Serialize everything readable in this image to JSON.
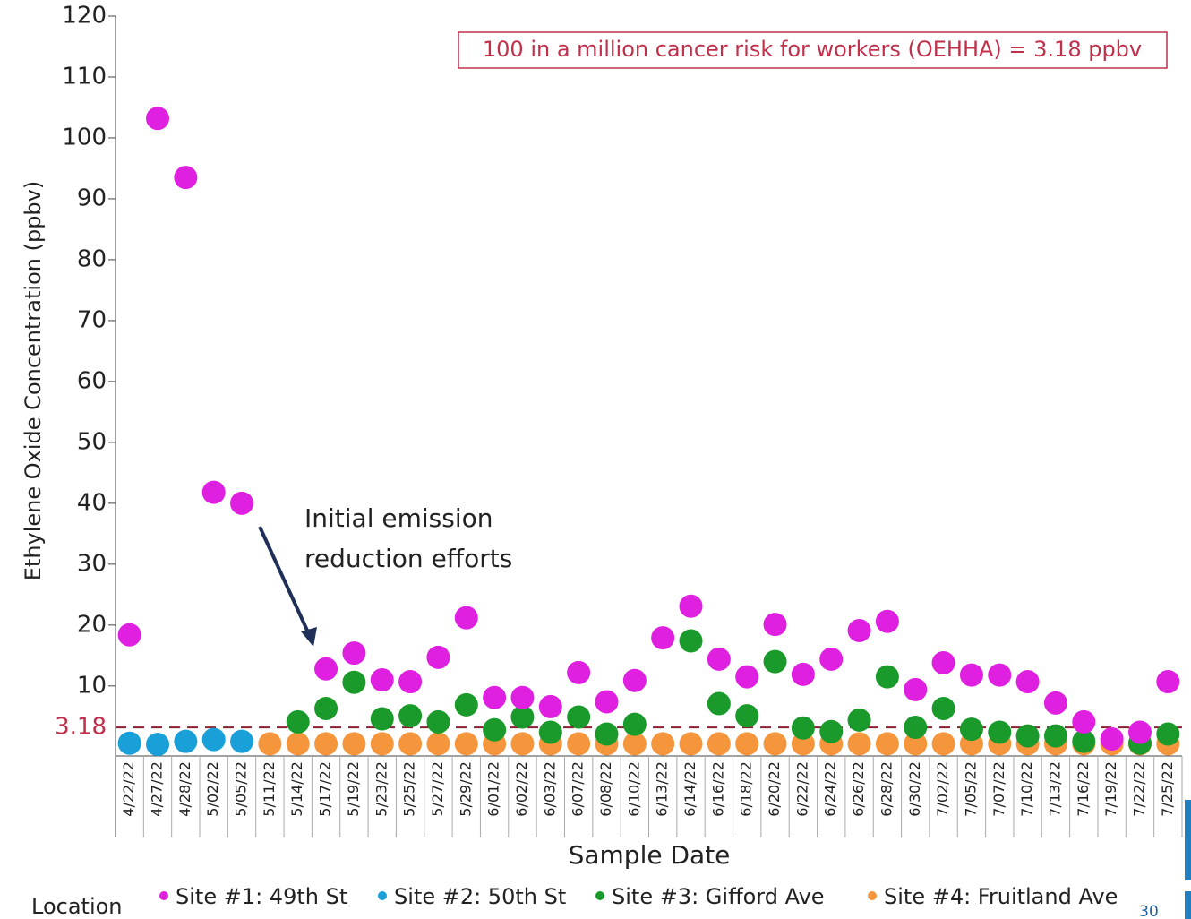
{
  "chart_data": {
    "type": "scatter",
    "y_label": "Ethylene Oxide Concentration (ppbv)",
    "x_label": "Sample Date",
    "annotation_box": "100 in a million cancer risk for workers (OEHHA) = 3.18 ppbv",
    "annotation_text": [
      "Initial emission",
      "reduction efforts"
    ],
    "reference_line": 3.18,
    "legend_title": "Location",
    "page_number": "30",
    "categories": [
      "4/22/22",
      "4/27/22",
      "4/28/22",
      "5/02/22",
      "5/05/22",
      "5/11/22",
      "5/14/22",
      "5/17/22",
      "5/19/22",
      "5/23/22",
      "5/25/22",
      "5/27/22",
      "5/29/22",
      "6/01/22",
      "6/02/22",
      "6/03/22",
      "6/07/22",
      "6/08/22",
      "6/10/22",
      "6/13/22",
      "6/14/22",
      "6/16/22",
      "6/18/22",
      "6/20/22",
      "6/22/22",
      "6/24/22",
      "6/26/22",
      "6/28/22",
      "6/30/22",
      "7/02/22",
      "7/05/22",
      "7/07/22",
      "7/10/22",
      "7/13/22",
      "7/16/22",
      "7/19/22",
      "7/22/22",
      "7/25/22"
    ],
    "series": [
      {
        "name": "Site #1: 49th St",
        "color": "#e020e0",
        "values": [
          18.4,
          103.2,
          93.5,
          41.8,
          40,
          null,
          null,
          12.8,
          15.4,
          11,
          10.7,
          14.7,
          21.2,
          8.1,
          8.1,
          6.6,
          12.2,
          7.4,
          10.9,
          17.9,
          23.1,
          14.4,
          11.5,
          20.1,
          11.9,
          14.4,
          19.1,
          20.6,
          9.4,
          13.8,
          11.8,
          11.8,
          10.7,
          7.2,
          4.1,
          1.3,
          2.4,
          10.7
        ]
      },
      {
        "name": "Site #2: 50th St",
        "color": "#1aa0d8",
        "values": [
          0.6,
          0.4,
          0.9,
          1.2,
          0.9,
          null,
          null,
          null,
          null,
          null,
          null,
          null,
          null,
          null,
          null,
          null,
          null,
          null,
          null,
          null,
          null,
          null,
          null,
          null,
          null,
          null,
          null,
          null,
          null,
          null,
          null,
          null,
          null,
          null,
          null,
          null,
          null,
          null
        ]
      },
      {
        "name": "Site #3: Gifford Ave",
        "color": "#1a9a2a",
        "values": [
          null,
          null,
          null,
          null,
          null,
          null,
          4.1,
          6.3,
          10.6,
          4.6,
          5.1,
          4.1,
          6.9,
          2.8,
          4.9,
          2.4,
          4.9,
          2.1,
          3.7,
          null,
          17.4,
          7.1,
          5.1,
          14,
          3.1,
          2.5,
          4.4,
          11.5,
          3.2,
          6.3,
          2.9,
          2.4,
          1.8,
          1.8,
          0.9,
          null,
          0.6,
          2.1
        ]
      },
      {
        "name": "Site #4: Fruitland Ave",
        "color": "#f5963c",
        "values": [
          null,
          null,
          null,
          null,
          null,
          0.5,
          0.5,
          0.5,
          0.5,
          0.5,
          0.5,
          0.5,
          0.5,
          0.5,
          0.5,
          0.5,
          0.5,
          0.5,
          0.5,
          0.5,
          0.5,
          0.5,
          0.5,
          0.5,
          0.5,
          0.5,
          0.5,
          0.5,
          0.5,
          0.5,
          0.5,
          0.5,
          0.5,
          0.5,
          0.5,
          0.5,
          0.5,
          0.5
        ]
      }
    ],
    "ylim": [
      -1.5,
      120
    ],
    "yticks": [
      10,
      20,
      30,
      40,
      50,
      60,
      70,
      80,
      90,
      100,
      110,
      120
    ]
  }
}
